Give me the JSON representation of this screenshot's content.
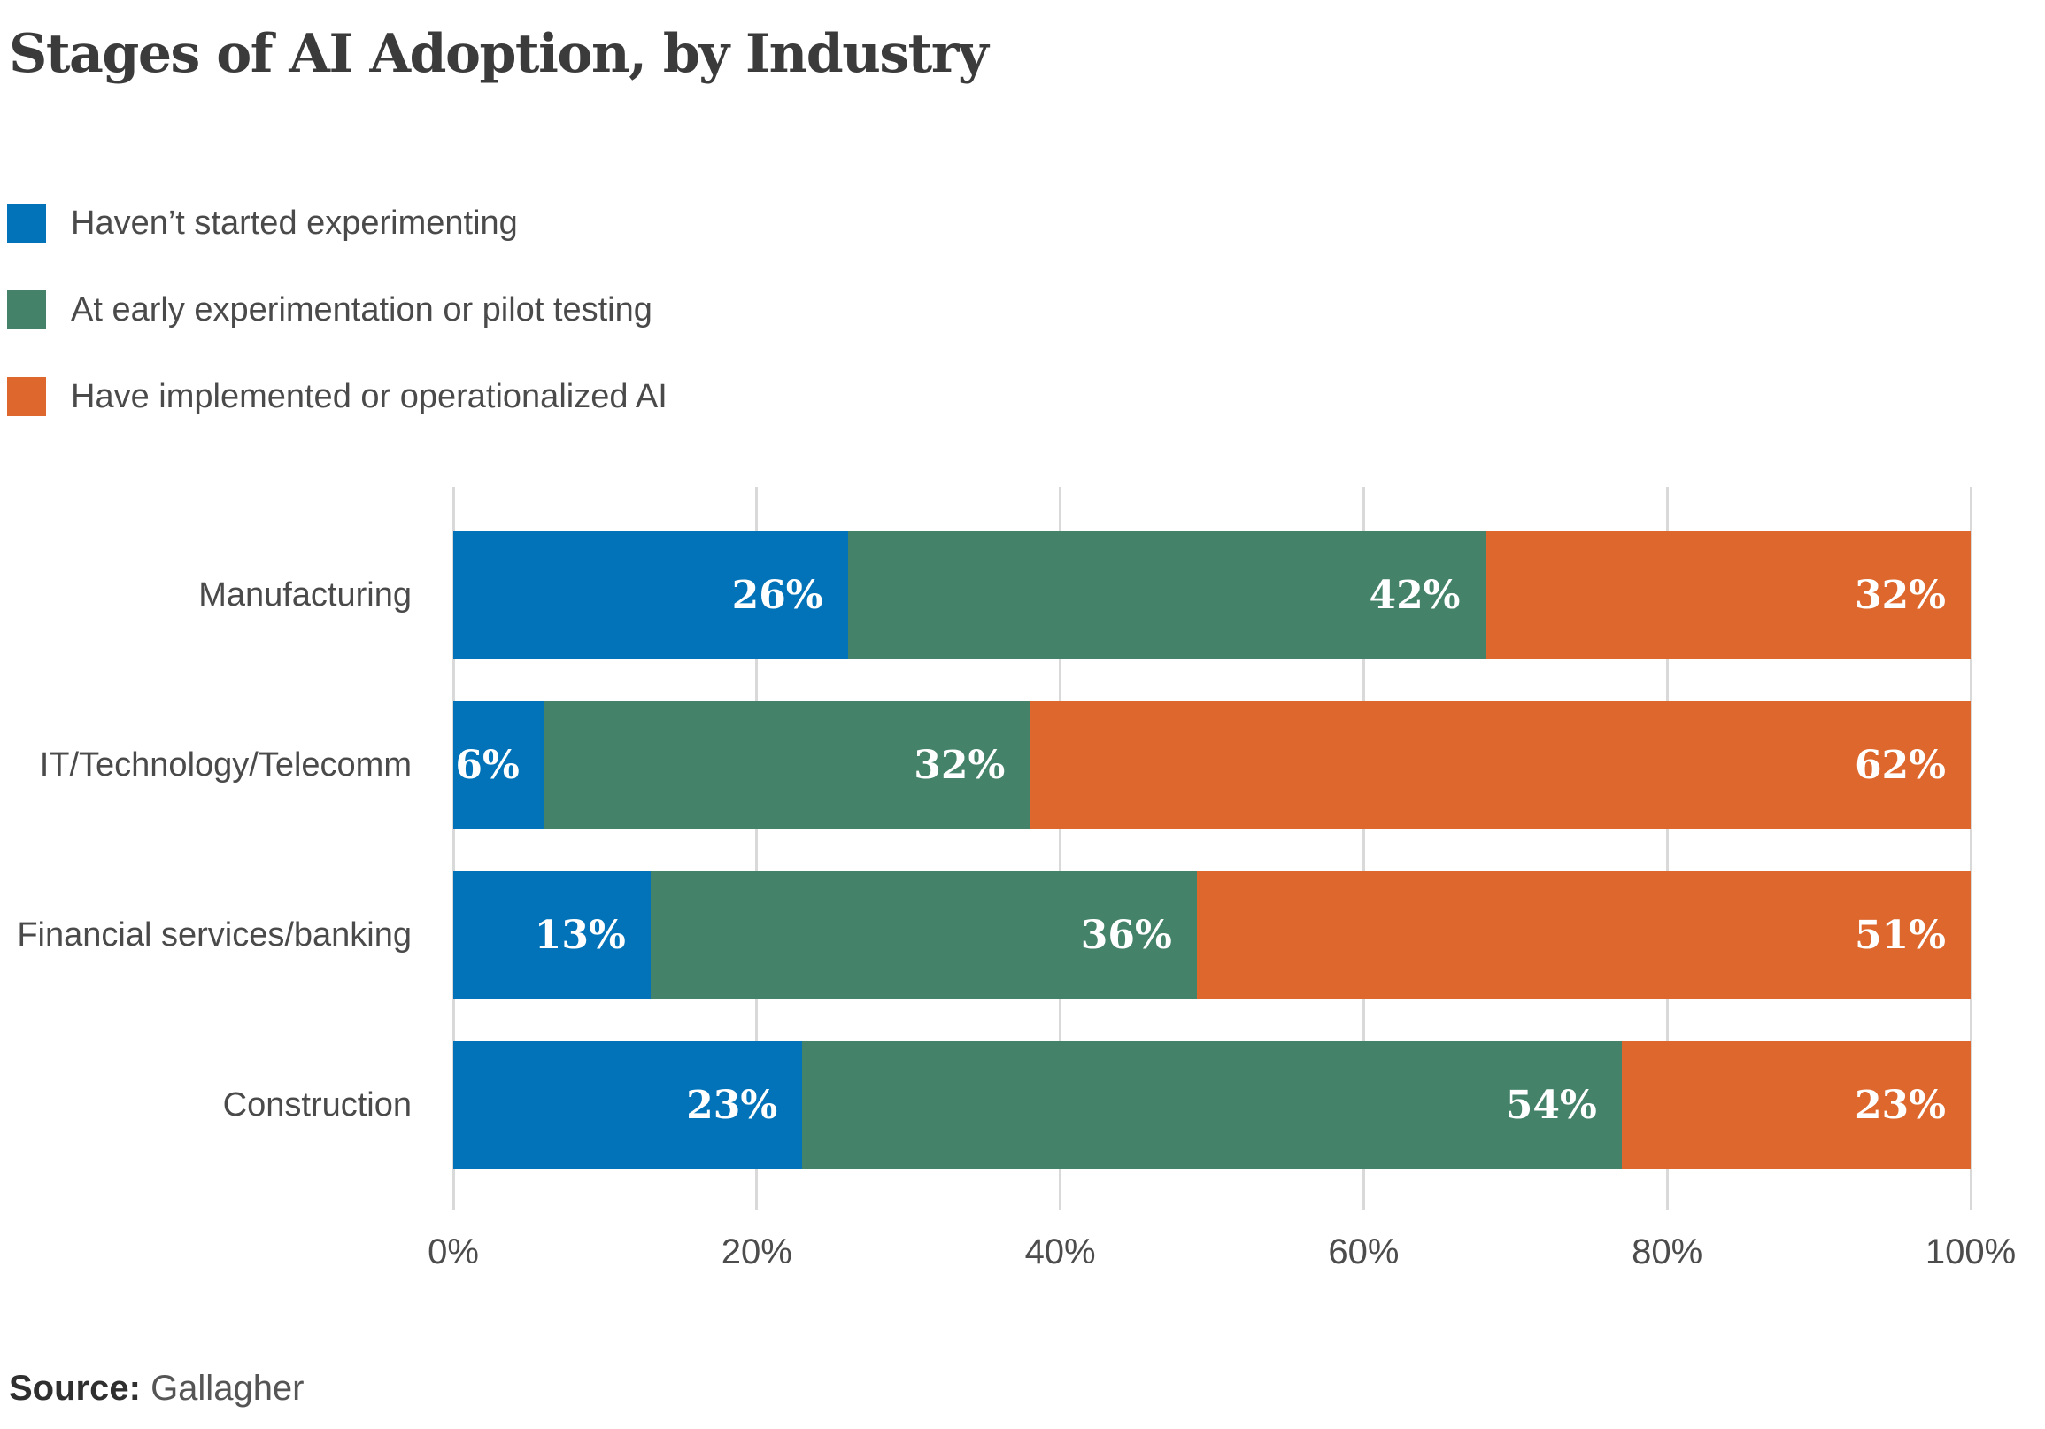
{
  "title": "Stages of AI Adoption, by Industry",
  "source": {
    "label": "Source:",
    "value": "Gallagher"
  },
  "colors": {
    "blue": "#0273b8",
    "green": "#44836a",
    "orange": "#dd672c",
    "gridline": "#d9d9d9",
    "title_text": "#3b3b3b",
    "label_text": "#4a4a4a",
    "value_label_text": "#ffffff"
  },
  "chart_data": {
    "type": "bar",
    "orientation": "horizontal",
    "stacked": true,
    "title": "Stages of AI Adoption, by Industry",
    "categories": [
      "Manufacturing",
      "IT/Technology/Telecomm",
      "Financial services/banking",
      "Construction"
    ],
    "series": [
      {
        "name": "Haven’t started experimenting",
        "color": "#0273b8",
        "values": [
          26,
          6,
          13,
          23
        ]
      },
      {
        "name": "At early experimentation or pilot testing",
        "color": "#44836a",
        "values": [
          42,
          32,
          36,
          54
        ]
      },
      {
        "name": "Have implemented or operationalized AI",
        "color": "#dd672c",
        "values": [
          32,
          62,
          51,
          23
        ]
      }
    ],
    "value_suffix": "%",
    "xlim": [
      0,
      100
    ],
    "x_ticks": [
      {
        "value": 0,
        "label": "0%"
      },
      {
        "value": 20,
        "label": "20%"
      },
      {
        "value": 40,
        "label": "40%"
      },
      {
        "value": 60,
        "label": "60%"
      },
      {
        "value": 80,
        "label": "80%"
      },
      {
        "value": 100,
        "label": "100%"
      }
    ],
    "grid": "vertical",
    "legend_position": "top-left"
  }
}
